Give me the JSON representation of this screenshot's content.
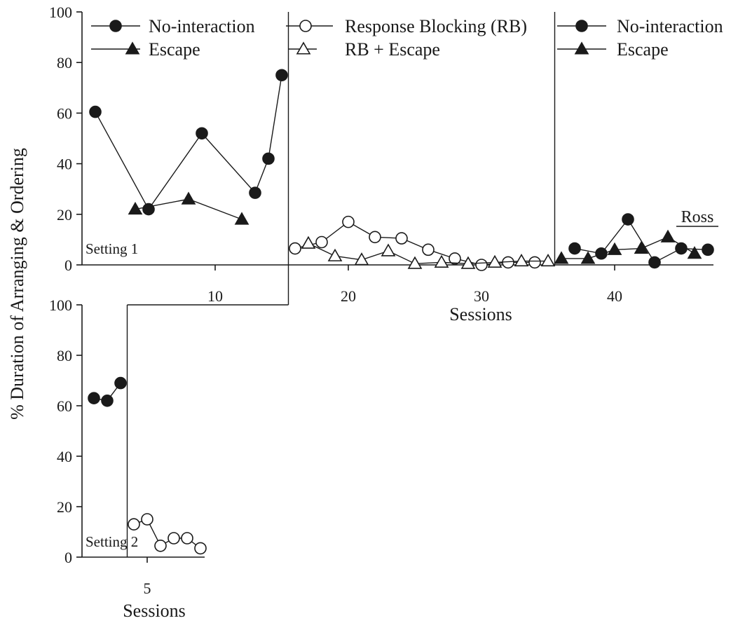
{
  "chart_data": [
    {
      "type": "line",
      "panel": "top",
      "setting_label": "Setting 1",
      "participant_label": "Ross",
      "xlabel": "Sessions",
      "ylabel": "% Duration of Arranging & Ordering",
      "xlim": [
        0,
        48
      ],
      "ylim": [
        0,
        100
      ],
      "xticks": [
        10,
        20,
        30,
        40
      ],
      "yticks": [
        0,
        20,
        40,
        60,
        80,
        100
      ],
      "legend": [
        {
          "label": "No-interaction",
          "marker": "circle",
          "fill": "#1a1a1a"
        },
        {
          "label": "Escape",
          "marker": "triangle",
          "fill": "#1a1a1a"
        },
        {
          "label": "Response Blocking (RB)",
          "marker": "circle",
          "fill": "#ffffff"
        },
        {
          "label": "RB + Escape",
          "marker": "triangle",
          "fill": "#ffffff"
        },
        {
          "label": "No-interaction",
          "marker": "circle",
          "fill": "#1a1a1a"
        },
        {
          "label": "Escape",
          "marker": "triangle",
          "fill": "#1a1a1a"
        }
      ],
      "phase_lines_x": [
        15.5,
        35.5
      ],
      "series": [
        {
          "marker": "circle",
          "fill": "#1a1a1a",
          "x": [
            1,
            5,
            9,
            13,
            14,
            15
          ],
          "y": [
            60.5,
            22,
            52,
            28.5,
            42,
            75
          ]
        },
        {
          "marker": "triangle",
          "fill": "#1a1a1a",
          "x": [
            4,
            8,
            12
          ],
          "y": [
            22,
            26,
            18
          ]
        },
        {
          "marker": "circle",
          "fill": "#ffffff",
          "x": [
            16,
            18,
            20,
            22,
            24,
            26,
            28,
            30,
            32,
            34
          ],
          "y": [
            6.5,
            9,
            17,
            11,
            10.5,
            6,
            2.5,
            0,
            1,
            1
          ]
        },
        {
          "marker": "triangle",
          "fill": "#ffffff",
          "x": [
            17,
            19,
            21,
            23,
            25,
            27,
            29,
            31,
            33,
            35
          ],
          "y": [
            8.5,
            3.5,
            2,
            5.5,
            0.5,
            1,
            0.5,
            1,
            1.5,
            1.5
          ]
        },
        {
          "marker": "circle",
          "fill": "#1a1a1a",
          "x": [
            37,
            39,
            41,
            43,
            45,
            47
          ],
          "y": [
            6.5,
            4.5,
            18,
            1,
            6.5,
            6
          ]
        },
        {
          "marker": "triangle",
          "fill": "#1a1a1a",
          "x": [
            36,
            38,
            40,
            42,
            44,
            46
          ],
          "y": [
            2.5,
            2.5,
            6,
            6.5,
            11,
            4.5
          ]
        }
      ]
    },
    {
      "type": "line",
      "panel": "bottom",
      "setting_label": "Setting 2",
      "xlabel": "Sessions",
      "xlim": [
        0,
        9
      ],
      "ylim": [
        0,
        100
      ],
      "xticks": [
        5
      ],
      "yticks": [
        0,
        20,
        40,
        60,
        80,
        100
      ],
      "phase_lines_x": [
        3.5
      ],
      "series": [
        {
          "marker": "circle",
          "fill": "#1a1a1a",
          "x": [
            1,
            2,
            3
          ],
          "y": [
            63,
            62,
            69
          ]
        },
        {
          "marker": "circle",
          "fill": "#ffffff",
          "x": [
            4,
            5,
            6,
            7,
            8,
            9
          ],
          "y": [
            13,
            15,
            4.5,
            7.5,
            7.5,
            3.5
          ]
        }
      ]
    }
  ]
}
